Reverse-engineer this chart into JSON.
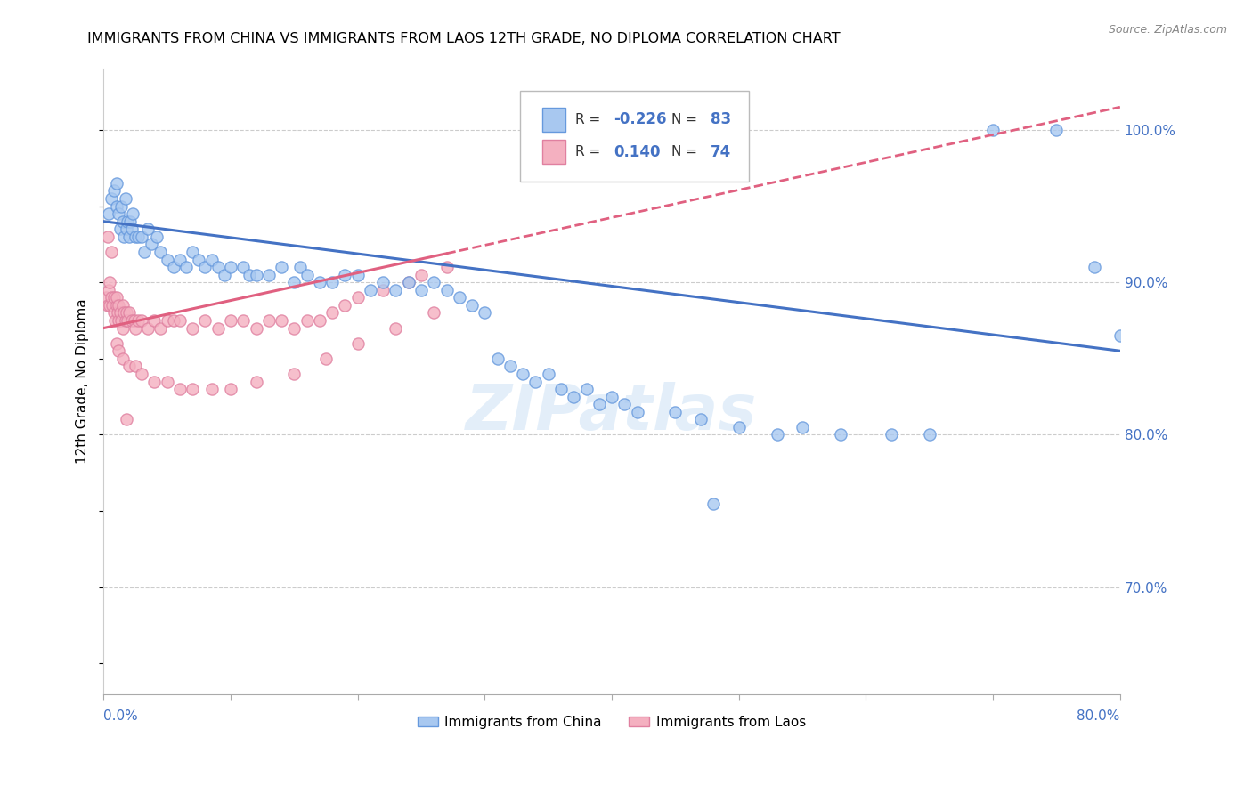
{
  "title": "IMMIGRANTS FROM CHINA VS IMMIGRANTS FROM LAOS 12TH GRADE, NO DIPLOMA CORRELATION CHART",
  "source": "Source: ZipAtlas.com",
  "ylabel": "12th Grade, No Diploma",
  "yticks": [
    70.0,
    80.0,
    90.0,
    100.0
  ],
  "xlim": [
    0.0,
    80.0
  ],
  "ylim": [
    63.0,
    104.0
  ],
  "legend_china": "Immigrants from China",
  "legend_laos": "Immigrants from Laos",
  "R_china": -0.226,
  "N_china": 83,
  "R_laos": 0.14,
  "N_laos": 74,
  "watermark": "ZIPatlas",
  "color_china": "#a8c8f0",
  "color_laos": "#f4b0c0",
  "color_china_edge": "#6699dd",
  "color_laos_edge": "#e080a0",
  "color_china_line": "#4472c4",
  "color_laos_line": "#e06080",
  "color_axis_label": "#4472c4",
  "china_line_y0": 94.0,
  "china_line_y1": 85.5,
  "laos_line_y0": 87.0,
  "laos_line_y1": 101.5,
  "laos_solid_x1": 27.0,
  "china_x": [
    0.4,
    0.6,
    0.8,
    1.0,
    1.0,
    1.2,
    1.3,
    1.4,
    1.5,
    1.6,
    1.7,
    1.8,
    1.9,
    2.0,
    2.1,
    2.2,
    2.3,
    2.5,
    2.7,
    3.0,
    3.2,
    3.5,
    3.8,
    4.2,
    4.5,
    5.0,
    5.5,
    6.0,
    6.5,
    7.0,
    7.5,
    8.0,
    8.5,
    9.0,
    9.5,
    10.0,
    11.0,
    11.5,
    12.0,
    13.0,
    14.0,
    15.0,
    15.5,
    16.0,
    17.0,
    18.0,
    19.0,
    20.0,
    21.0,
    22.0,
    23.0,
    24.0,
    25.0,
    26.0,
    27.0,
    28.0,
    29.0,
    30.0,
    31.0,
    32.0,
    33.0,
    34.0,
    35.0,
    36.0,
    37.0,
    38.0,
    39.0,
    40.0,
    41.0,
    42.0,
    45.0,
    47.0,
    50.0,
    53.0,
    55.0,
    58.0,
    62.0,
    65.0,
    70.0,
    75.0,
    78.0,
    80.0,
    48.0
  ],
  "china_y": [
    94.5,
    95.5,
    96.0,
    95.0,
    96.5,
    94.5,
    93.5,
    95.0,
    94.0,
    93.0,
    95.5,
    93.5,
    94.0,
    93.0,
    94.0,
    93.5,
    94.5,
    93.0,
    93.0,
    93.0,
    92.0,
    93.5,
    92.5,
    93.0,
    92.0,
    91.5,
    91.0,
    91.5,
    91.0,
    92.0,
    91.5,
    91.0,
    91.5,
    91.0,
    90.5,
    91.0,
    91.0,
    90.5,
    90.5,
    90.5,
    91.0,
    90.0,
    91.0,
    90.5,
    90.0,
    90.0,
    90.5,
    90.5,
    89.5,
    90.0,
    89.5,
    90.0,
    89.5,
    90.0,
    89.5,
    89.0,
    88.5,
    88.0,
    85.0,
    84.5,
    84.0,
    83.5,
    84.0,
    83.0,
    82.5,
    83.0,
    82.0,
    82.5,
    82.0,
    81.5,
    81.5,
    81.0,
    80.5,
    80.0,
    80.5,
    80.0,
    80.0,
    80.0,
    100.0,
    100.0,
    91.0,
    86.5,
    75.5
  ],
  "laos_x": [
    0.2,
    0.3,
    0.4,
    0.5,
    0.5,
    0.6,
    0.7,
    0.8,
    0.8,
    0.9,
    1.0,
    1.0,
    1.1,
    1.2,
    1.2,
    1.3,
    1.4,
    1.5,
    1.5,
    1.6,
    1.7,
    1.8,
    1.9,
    2.0,
    2.2,
    2.4,
    2.5,
    2.7,
    3.0,
    3.5,
    4.0,
    4.5,
    5.0,
    5.5,
    6.0,
    7.0,
    8.0,
    9.0,
    10.0,
    11.0,
    12.0,
    13.0,
    14.0,
    15.0,
    16.0,
    17.0,
    18.0,
    19.0,
    20.0,
    22.0,
    24.0,
    25.0,
    27.0,
    1.0,
    1.2,
    1.5,
    2.0,
    2.5,
    3.0,
    4.0,
    5.0,
    6.0,
    7.0,
    8.5,
    10.0,
    12.0,
    15.0,
    17.5,
    20.0,
    23.0,
    26.0,
    0.3,
    0.6,
    1.8
  ],
  "laos_y": [
    89.0,
    88.5,
    89.5,
    88.5,
    90.0,
    89.0,
    88.5,
    89.0,
    88.0,
    87.5,
    88.5,
    89.0,
    88.0,
    88.5,
    87.5,
    88.0,
    87.5,
    88.5,
    87.0,
    88.0,
    87.5,
    88.0,
    87.5,
    88.0,
    87.5,
    87.5,
    87.0,
    87.5,
    87.5,
    87.0,
    87.5,
    87.0,
    87.5,
    87.5,
    87.5,
    87.0,
    87.5,
    87.0,
    87.5,
    87.5,
    87.0,
    87.5,
    87.5,
    87.0,
    87.5,
    87.5,
    88.0,
    88.5,
    89.0,
    89.5,
    90.0,
    90.5,
    91.0,
    86.0,
    85.5,
    85.0,
    84.5,
    84.5,
    84.0,
    83.5,
    83.5,
    83.0,
    83.0,
    83.0,
    83.0,
    83.5,
    84.0,
    85.0,
    86.0,
    87.0,
    88.0,
    93.0,
    92.0,
    81.0
  ]
}
